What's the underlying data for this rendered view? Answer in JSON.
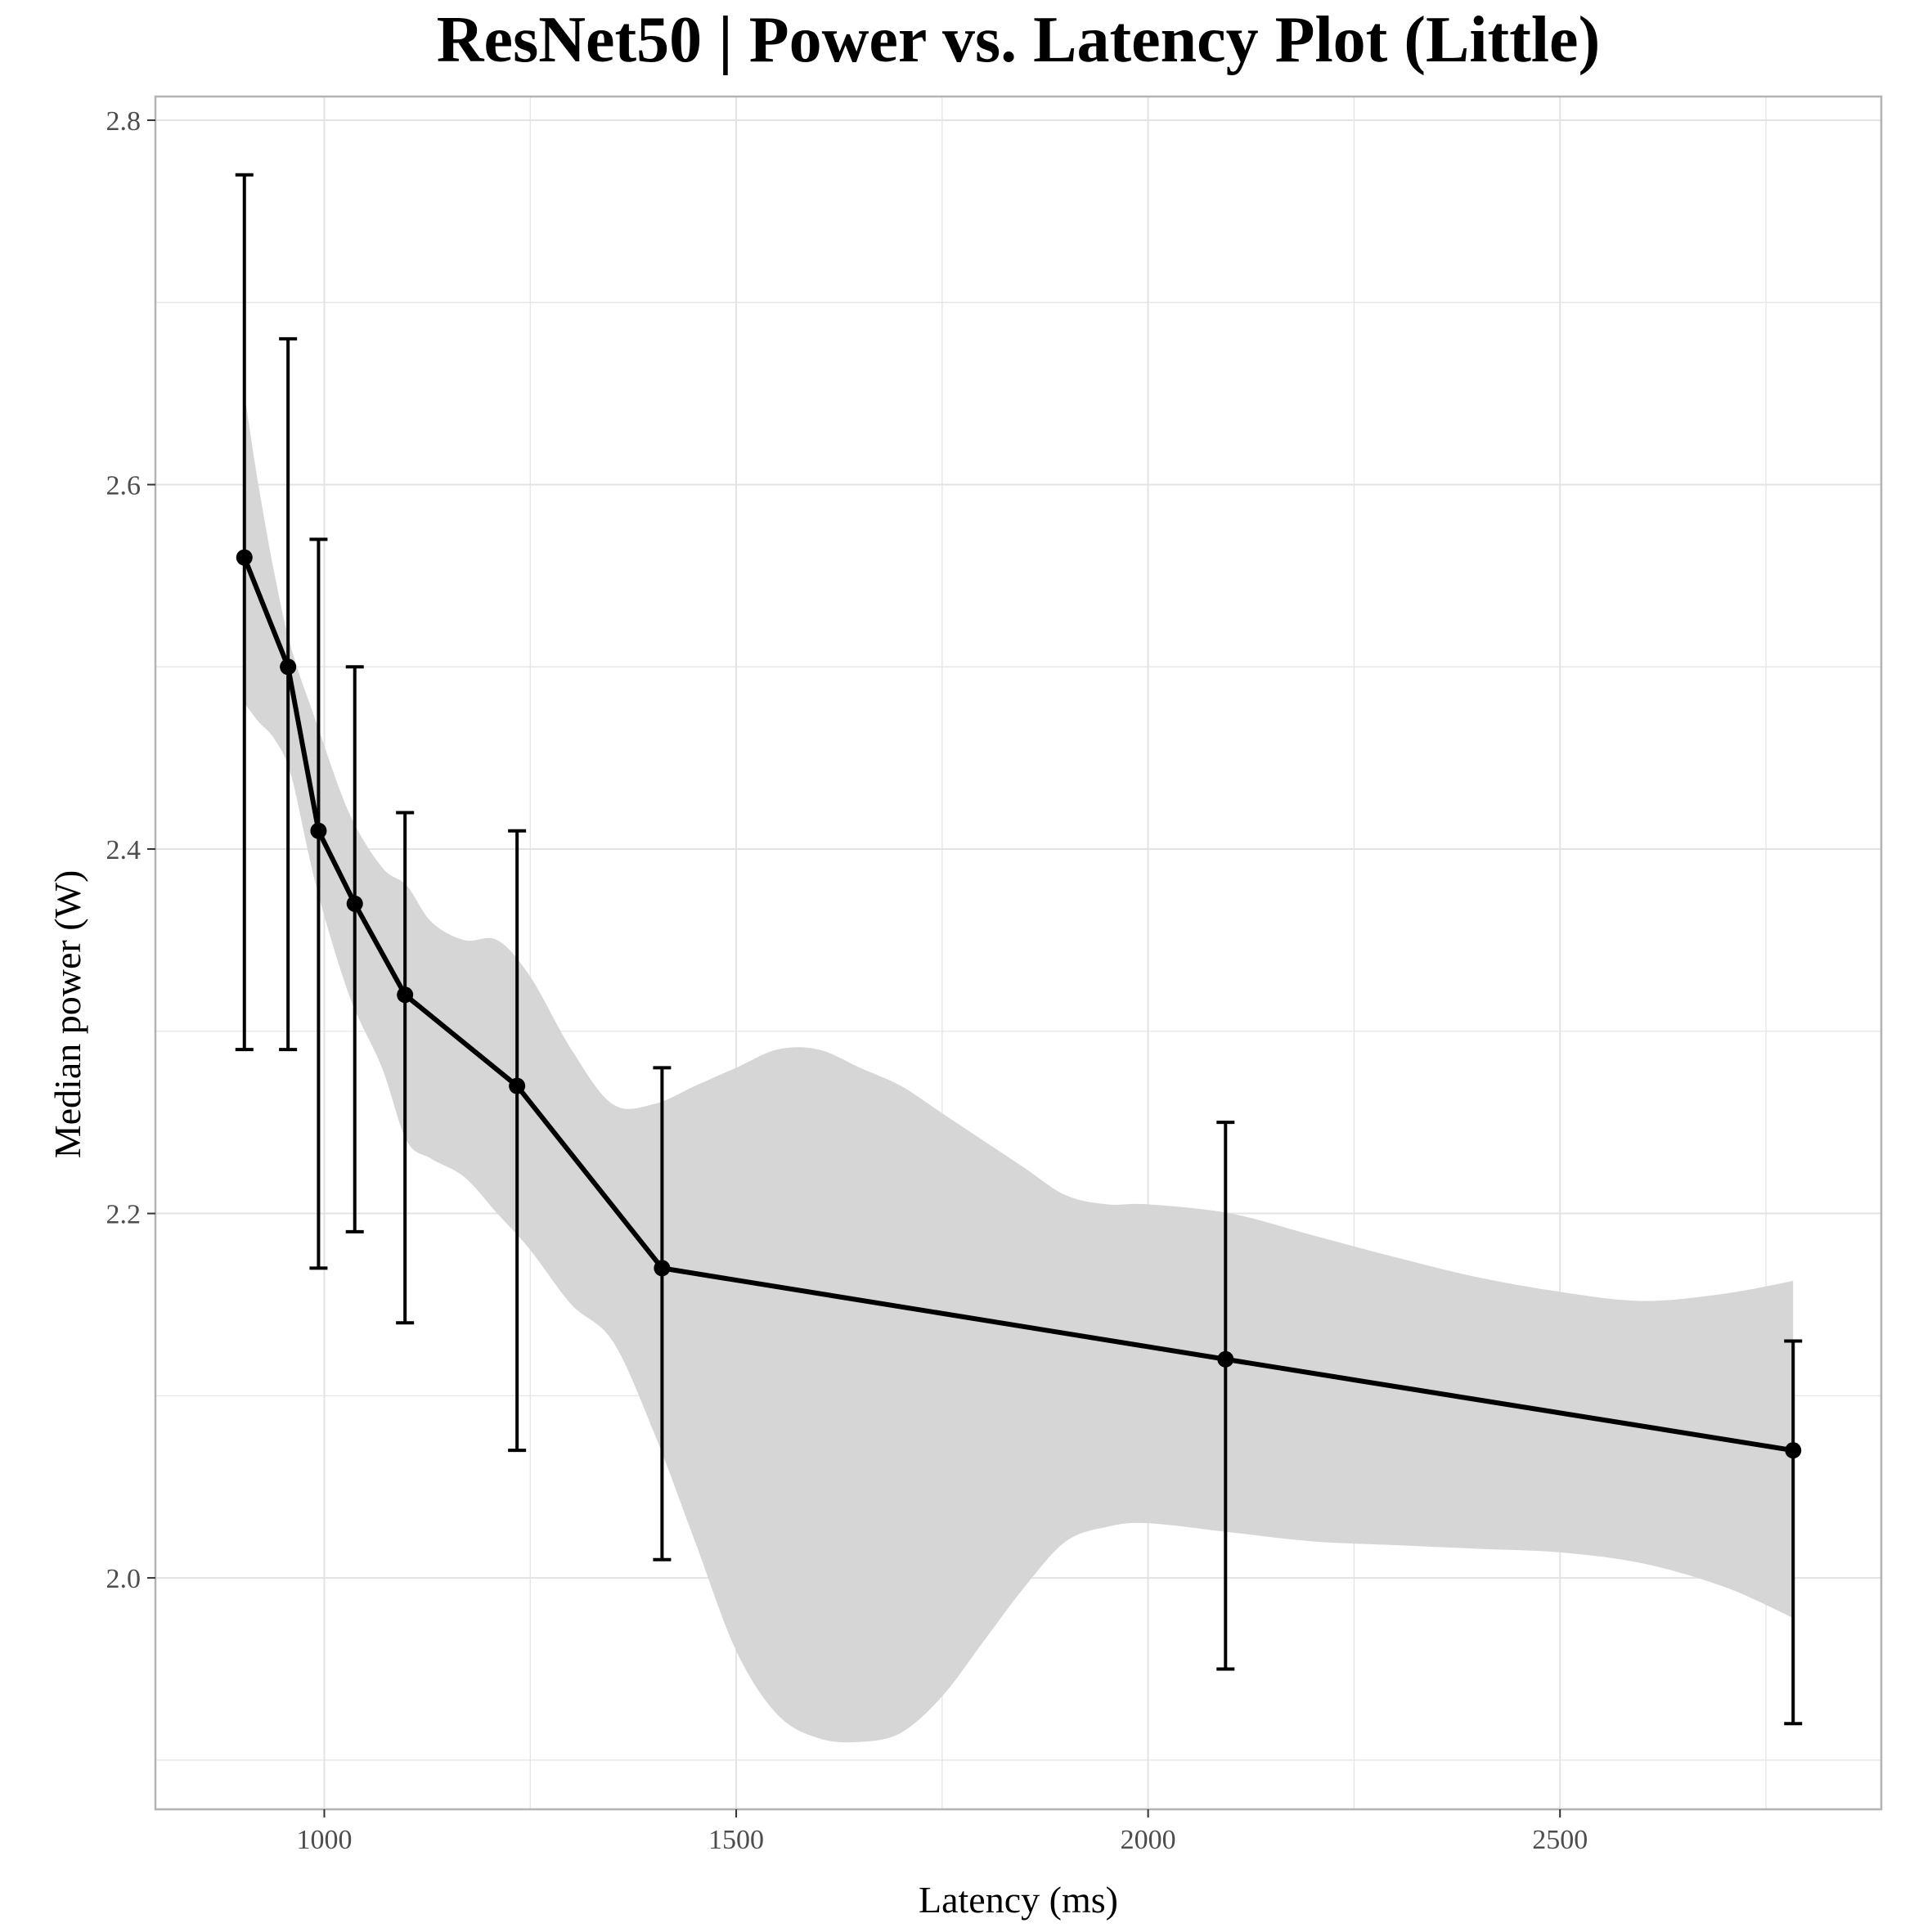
{
  "chart_data": {
    "type": "line",
    "title": "ResNet50 | Power vs. Latency Plot (Little)",
    "xlabel": "Latency (ms)",
    "ylabel": "Median power (W)",
    "xlim": [
      795,
      2890
    ],
    "ylim": [
      1.873,
      2.813
    ],
    "x_ticks": [
      1000,
      1500,
      2000,
      2500
    ],
    "x_tick_labels": [
      "1000",
      "1500",
      "2000",
      "2500"
    ],
    "x_minor_ticks": [
      1250,
      1750,
      2250,
      2750
    ],
    "y_ticks": [
      2.0,
      2.2,
      2.4,
      2.6,
      2.8
    ],
    "y_tick_labels": [
      "2.0",
      "2.2",
      "2.4",
      "2.6",
      "2.8"
    ],
    "y_minor_ticks": [
      1.9,
      2.1,
      2.3,
      2.5,
      2.7
    ],
    "grid": true,
    "legend": "none",
    "colors": {
      "line": "#000000",
      "ribbon": "#d6d6d6",
      "grid": "#e3e3e3",
      "panel_border": "#b3b3b3",
      "tick_text": "#4d4d4d"
    },
    "series": [
      {
        "x": [
          903,
          956,
          993,
          1037,
          1098,
          1234,
          1410,
          2094,
          2783
        ],
        "y": [
          2.56,
          2.5,
          2.41,
          2.37,
          2.32,
          2.27,
          2.17,
          2.12,
          2.07
        ],
        "error_low": [
          2.29,
          2.29,
          2.17,
          2.19,
          2.14,
          2.07,
          2.01,
          1.95,
          1.92
        ],
        "error_high": [
          2.77,
          2.68,
          2.57,
          2.5,
          2.42,
          2.41,
          2.28,
          2.25,
          2.13
        ]
      }
    ],
    "smooth_band": {
      "x": [
        903,
        920,
        940,
        960,
        990,
        1030,
        1070,
        1100,
        1130,
        1170,
        1210,
        1250,
        1300,
        1350,
        1400,
        1450,
        1500,
        1550,
        1600,
        1650,
        1700,
        1750,
        1800,
        1850,
        1900,
        1950,
        2000,
        2100,
        2200,
        2300,
        2400,
        2500,
        2600,
        2700,
        2783
      ],
      "upper": [
        2.65,
        2.6,
        2.55,
        2.51,
        2.47,
        2.42,
        2.39,
        2.38,
        2.36,
        2.35,
        2.35,
        2.33,
        2.29,
        2.26,
        2.26,
        2.27,
        2.28,
        2.29,
        2.29,
        2.28,
        2.27,
        2.255,
        2.24,
        2.225,
        2.21,
        2.205,
        2.205,
        2.2,
        2.188,
        2.176,
        2.165,
        2.157,
        2.152,
        2.156,
        2.163
      ],
      "lower": [
        2.48,
        2.47,
        2.46,
        2.44,
        2.38,
        2.32,
        2.28,
        2.24,
        2.23,
        2.22,
        2.2,
        2.18,
        2.15,
        2.13,
        2.08,
        2.02,
        1.96,
        1.925,
        1.912,
        1.91,
        1.915,
        1.935,
        1.965,
        1.995,
        2.02,
        2.028,
        2.03,
        2.025,
        2.02,
        2.018,
        2.016,
        2.014,
        2.008,
        1.995,
        1.978
      ]
    }
  }
}
